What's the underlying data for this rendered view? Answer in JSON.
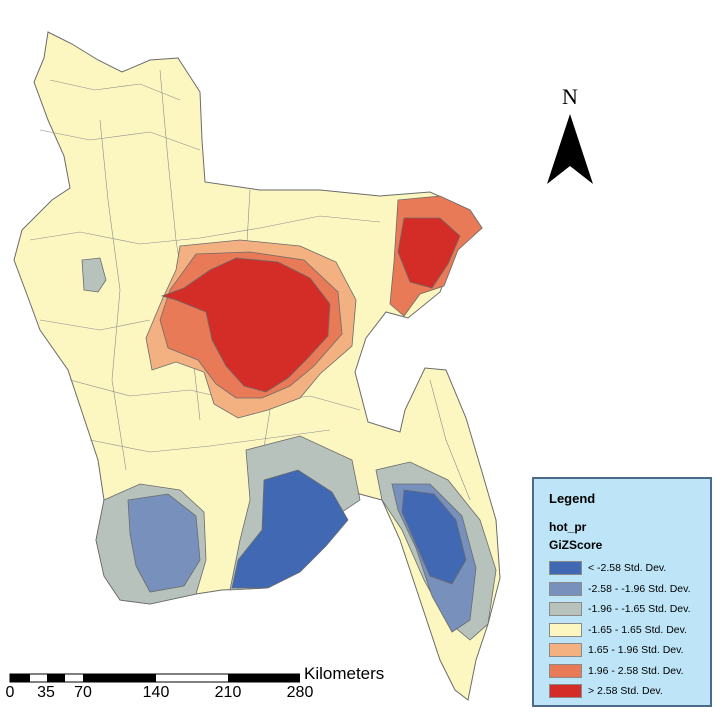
{
  "map": {
    "north_label": "N",
    "scale": {
      "unit": "Kilometers",
      "ticks": [
        "0",
        "35",
        "70",
        "140",
        "210",
        "280"
      ]
    },
    "legend": {
      "title": "Legend",
      "layer": "hot_pr",
      "field": "GiZScore",
      "classes": [
        {
          "label": "< -2.58 Std. Dev.",
          "color": "#4169b3"
        },
        {
          "label": "-2.58 - -1.96 Std. Dev.",
          "color": "#7890bc"
        },
        {
          "label": "-1.96 - -1.65 Std. Dev.",
          "color": "#b8c2bc"
        },
        {
          "label": "-1.65 - 1.65 Std. Dev.",
          "color": "#fcf7c0"
        },
        {
          "label": "1.65 - 1.96 Std. Dev.",
          "color": "#f3b182"
        },
        {
          "label": "1.96 - 2.58 Std. Dev.",
          "color": "#e97a57"
        },
        {
          "label": "> 2.58 Std. Dev.",
          "color": "#d42d27"
        }
      ]
    }
  }
}
